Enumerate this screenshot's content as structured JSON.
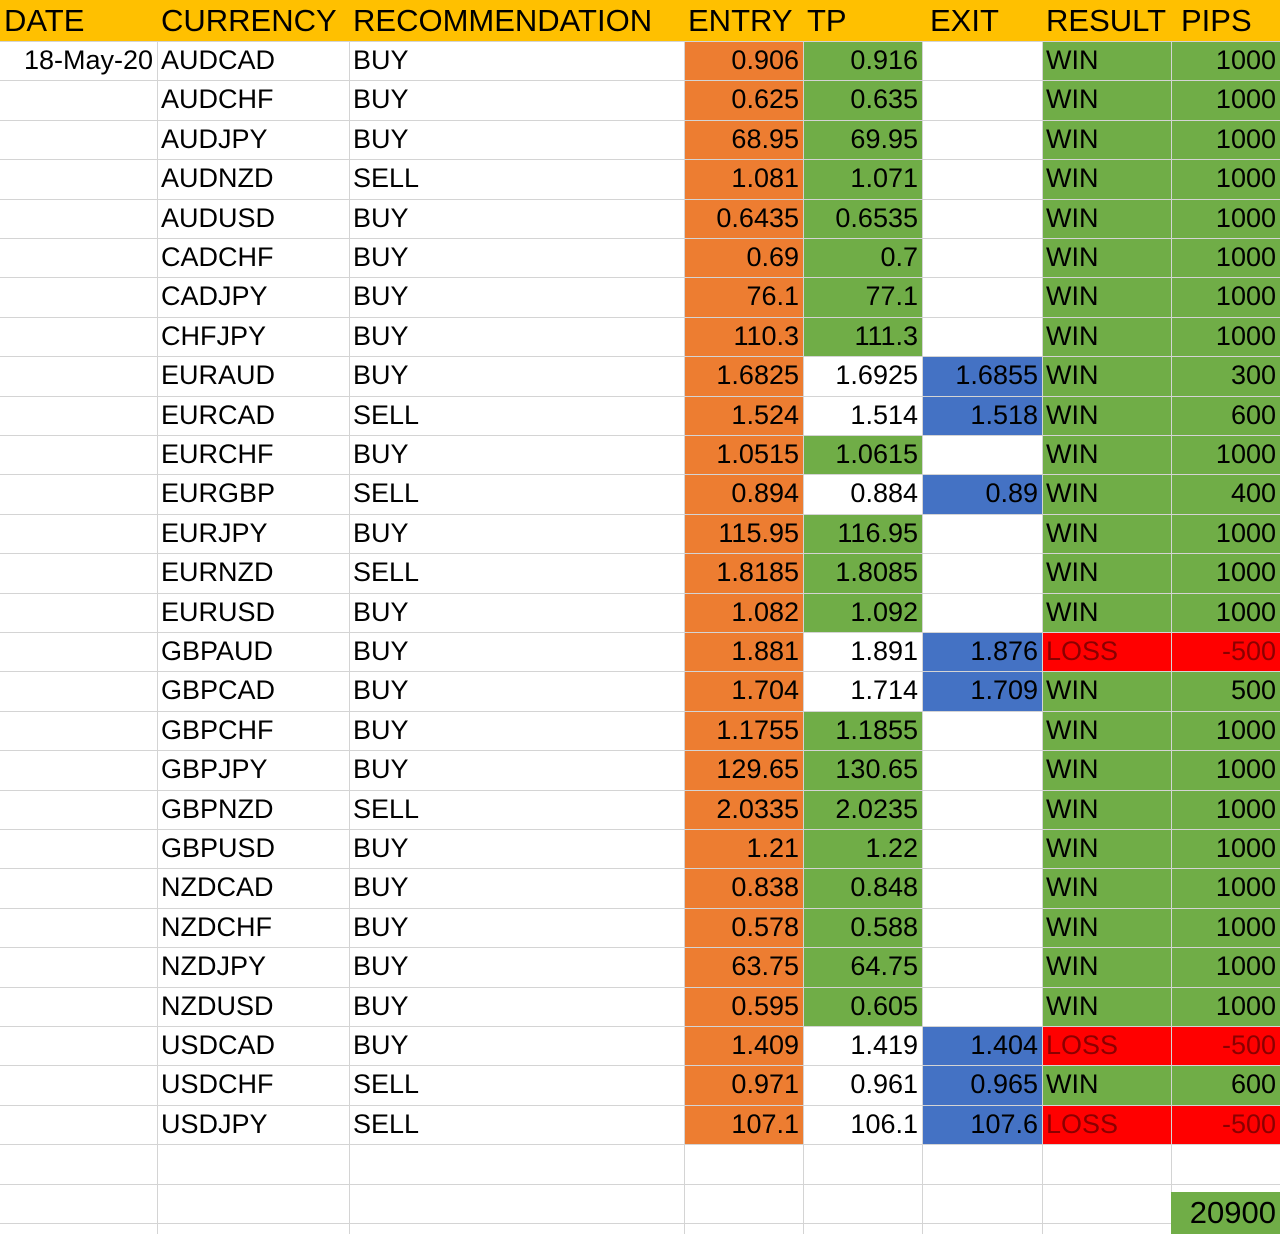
{
  "headers": {
    "date": "DATE",
    "currency": "CURRENCY",
    "recommendation": "RECOMMENDATION",
    "entry": "ENTRY",
    "tp": "TP",
    "exit": "EXIT",
    "result": "RESULT",
    "pips": "PIPS"
  },
  "rows": [
    {
      "date": "18-May-20",
      "currency": "AUDCAD",
      "rec": "BUY",
      "entry": "0.906",
      "tp": "0.916",
      "tp_hit": true,
      "exit": "",
      "result": "WIN",
      "pips": "1000"
    },
    {
      "date": "",
      "currency": "AUDCHF",
      "rec": "BUY",
      "entry": "0.625",
      "tp": "0.635",
      "tp_hit": true,
      "exit": "",
      "result": "WIN",
      "pips": "1000"
    },
    {
      "date": "",
      "currency": "AUDJPY",
      "rec": "BUY",
      "entry": "68.95",
      "tp": "69.95",
      "tp_hit": true,
      "exit": "",
      "result": "WIN",
      "pips": "1000"
    },
    {
      "date": "",
      "currency": "AUDNZD",
      "rec": "SELL",
      "entry": "1.081",
      "tp": "1.071",
      "tp_hit": true,
      "exit": "",
      "result": "WIN",
      "pips": "1000"
    },
    {
      "date": "",
      "currency": "AUDUSD",
      "rec": "BUY",
      "entry": "0.6435",
      "tp": "0.6535",
      "tp_hit": true,
      "exit": "",
      "result": "WIN",
      "pips": "1000"
    },
    {
      "date": "",
      "currency": "CADCHF",
      "rec": "BUY",
      "entry": "0.69",
      "tp": "0.7",
      "tp_hit": true,
      "exit": "",
      "result": "WIN",
      "pips": "1000"
    },
    {
      "date": "",
      "currency": "CADJPY",
      "rec": "BUY",
      "entry": "76.1",
      "tp": "77.1",
      "tp_hit": true,
      "exit": "",
      "result": "WIN",
      "pips": "1000"
    },
    {
      "date": "",
      "currency": "CHFJPY",
      "rec": "BUY",
      "entry": "110.3",
      "tp": "111.3",
      "tp_hit": true,
      "exit": "",
      "result": "WIN",
      "pips": "1000"
    },
    {
      "date": "",
      "currency": "EURAUD",
      "rec": "BUY",
      "entry": "1.6825",
      "tp": "1.6925",
      "tp_hit": false,
      "exit": "1.6855",
      "result": "WIN",
      "pips": "300"
    },
    {
      "date": "",
      "currency": "EURCAD",
      "rec": "SELL",
      "entry": "1.524",
      "tp": "1.514",
      "tp_hit": false,
      "exit": "1.518",
      "result": "WIN",
      "pips": "600"
    },
    {
      "date": "",
      "currency": "EURCHF",
      "rec": "BUY",
      "entry": "1.0515",
      "tp": "1.0615",
      "tp_hit": true,
      "exit": "",
      "result": "WIN",
      "pips": "1000"
    },
    {
      "date": "",
      "currency": "EURGBP",
      "rec": "SELL",
      "entry": "0.894",
      "tp": "0.884",
      "tp_hit": false,
      "exit": "0.89",
      "result": "WIN",
      "pips": "400"
    },
    {
      "date": "",
      "currency": "EURJPY",
      "rec": "BUY",
      "entry": "115.95",
      "tp": "116.95",
      "tp_hit": true,
      "exit": "",
      "result": "WIN",
      "pips": "1000"
    },
    {
      "date": "",
      "currency": "EURNZD",
      "rec": "SELL",
      "entry": "1.8185",
      "tp": "1.8085",
      "tp_hit": true,
      "exit": "",
      "result": "WIN",
      "pips": "1000"
    },
    {
      "date": "",
      "currency": "EURUSD",
      "rec": "BUY",
      "entry": "1.082",
      "tp": "1.092",
      "tp_hit": true,
      "exit": "",
      "result": "WIN",
      "pips": "1000"
    },
    {
      "date": "",
      "currency": "GBPAUD",
      "rec": "BUY",
      "entry": "1.881",
      "tp": "1.891",
      "tp_hit": false,
      "exit": "1.876",
      "result": "LOSS",
      "pips": "-500"
    },
    {
      "date": "",
      "currency": "GBPCAD",
      "rec": "BUY",
      "entry": "1.704",
      "tp": "1.714",
      "tp_hit": false,
      "exit": "1.709",
      "result": "WIN",
      "pips": "500"
    },
    {
      "date": "",
      "currency": "GBPCHF",
      "rec": "BUY",
      "entry": "1.1755",
      "tp": "1.1855",
      "tp_hit": true,
      "exit": "",
      "result": "WIN",
      "pips": "1000"
    },
    {
      "date": "",
      "currency": "GBPJPY",
      "rec": "BUY",
      "entry": "129.65",
      "tp": "130.65",
      "tp_hit": true,
      "exit": "",
      "result": "WIN",
      "pips": "1000"
    },
    {
      "date": "",
      "currency": "GBPNZD",
      "rec": "SELL",
      "entry": "2.0335",
      "tp": "2.0235",
      "tp_hit": true,
      "exit": "",
      "result": "WIN",
      "pips": "1000"
    },
    {
      "date": "",
      "currency": "GBPUSD",
      "rec": "BUY",
      "entry": "1.21",
      "tp": "1.22",
      "tp_hit": true,
      "exit": "",
      "result": "WIN",
      "pips": "1000"
    },
    {
      "date": "",
      "currency": "NZDCAD",
      "rec": "BUY",
      "entry": "0.838",
      "tp": "0.848",
      "tp_hit": true,
      "exit": "",
      "result": "WIN",
      "pips": "1000"
    },
    {
      "date": "",
      "currency": "NZDCHF",
      "rec": "BUY",
      "entry": "0.578",
      "tp": "0.588",
      "tp_hit": true,
      "exit": "",
      "result": "WIN",
      "pips": "1000"
    },
    {
      "date": "",
      "currency": "NZDJPY",
      "rec": "BUY",
      "entry": "63.75",
      "tp": "64.75",
      "tp_hit": true,
      "exit": "",
      "result": "WIN",
      "pips": "1000"
    },
    {
      "date": "",
      "currency": "NZDUSD",
      "rec": "BUY",
      "entry": "0.595",
      "tp": "0.605",
      "tp_hit": true,
      "exit": "",
      "result": "WIN",
      "pips": "1000"
    },
    {
      "date": "",
      "currency": "USDCAD",
      "rec": "BUY",
      "entry": "1.409",
      "tp": "1.419",
      "tp_hit": false,
      "exit": "1.404",
      "result": "LOSS",
      "pips": "-500"
    },
    {
      "date": "",
      "currency": "USDCHF",
      "rec": "SELL",
      "entry": "0.971",
      "tp": "0.961",
      "tp_hit": false,
      "exit": "0.965",
      "result": "WIN",
      "pips": "600"
    },
    {
      "date": "",
      "currency": "USDJPY",
      "rec": "SELL",
      "entry": "107.1",
      "tp": "106.1",
      "tp_hit": false,
      "exit": "107.6",
      "result": "LOSS",
      "pips": "-500"
    }
  ],
  "total": "20900",
  "colors": {
    "header": "#ffc000",
    "entry": "#ed7d31",
    "tp_hit": "#70ad47",
    "exit": "#4472c4",
    "win": "#70ad47",
    "loss": "#ff0000"
  }
}
